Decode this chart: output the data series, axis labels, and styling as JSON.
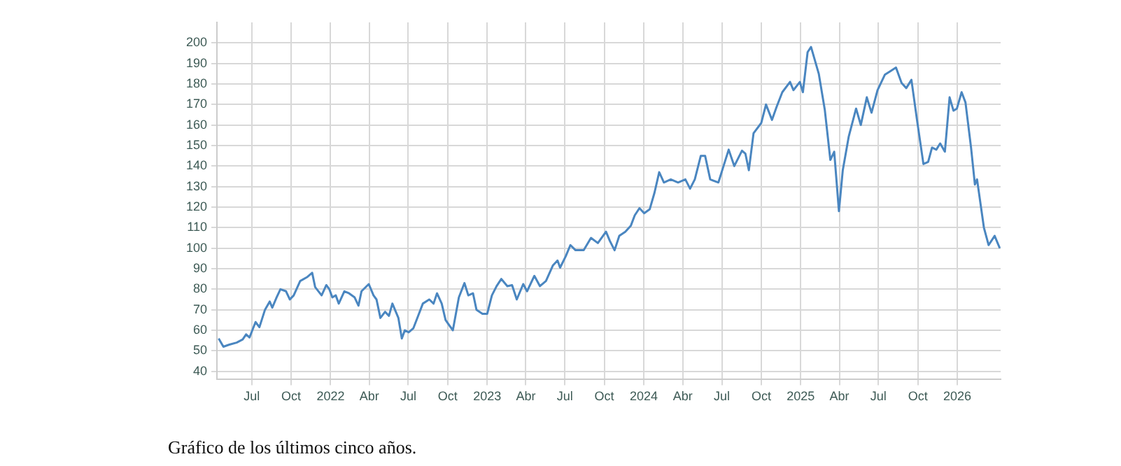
{
  "chart_data": {
    "type": "line",
    "annotations": [
      "Gráfico de los últimos cinco años."
    ],
    "x": [
      "2021-04-15",
      "2021-04-26",
      "2021-05-10",
      "2021-05-27",
      "2021-06-10",
      "2021-06-18",
      "2021-06-26",
      "2021-07-10",
      "2021-07-19",
      "2021-08-01",
      "2021-08-12",
      "2021-08-18",
      "2021-08-28",
      "2021-09-06",
      "2021-09-19",
      "2021-09-28",
      "2021-10-07",
      "2021-10-22",
      "2021-11-08",
      "2021-11-19",
      "2021-11-26",
      "2021-12-11",
      "2021-12-22",
      "2021-12-29",
      "2022-01-05",
      "2022-01-13",
      "2022-01-20",
      "2022-02-02",
      "2022-02-13",
      "2022-02-26",
      "2022-03-07",
      "2022-03-14",
      "2022-03-31",
      "2022-04-11",
      "2022-04-18",
      "2022-04-27",
      "2022-05-08",
      "2022-05-17",
      "2022-05-25",
      "2022-06-08",
      "2022-06-16",
      "2022-06-23",
      "2022-07-02",
      "2022-07-13",
      "2022-07-24",
      "2022-08-04",
      "2022-08-19",
      "2022-08-29",
      "2022-09-06",
      "2022-09-17",
      "2022-09-26",
      "2022-10-06",
      "2022-10-13",
      "2022-10-27",
      "2022-11-09",
      "2022-11-18",
      "2022-11-29",
      "2022-12-07",
      "2022-12-21",
      "2023-01-01",
      "2023-01-12",
      "2023-01-23",
      "2023-02-03",
      "2023-02-17",
      "2023-02-28",
      "2023-03-11",
      "2023-03-26",
      "2023-04-04",
      "2023-04-21",
      "2023-05-04",
      "2023-05-18",
      "2023-06-03",
      "2023-06-14",
      "2023-06-20",
      "2023-07-03",
      "2023-07-14",
      "2023-07-26",
      "2023-08-14",
      "2023-08-31",
      "2023-09-16",
      "2023-10-05",
      "2023-10-14",
      "2023-10-25",
      "2023-11-05",
      "2023-11-19",
      "2023-12-02",
      "2023-12-11",
      "2023-12-22",
      "2024-01-02",
      "2024-01-15",
      "2024-01-26",
      "2024-02-06",
      "2024-02-17",
      "2024-03-04",
      "2024-03-21",
      "2024-04-07",
      "2024-04-18",
      "2024-04-29",
      "2024-05-13",
      "2024-05-23",
      "2024-06-04",
      "2024-06-23",
      "2024-07-17",
      "2024-07-30",
      "2024-08-17",
      "2024-08-25",
      "2024-09-02",
      "2024-09-13",
      "2024-10-01",
      "2024-10-12",
      "2024-10-26",
      "2024-11-06",
      "2024-11-19",
      "2024-12-07",
      "2024-12-15",
      "2024-12-30",
      "2025-01-06",
      "2025-01-17",
      "2025-01-25",
      "2025-02-12",
      "2025-02-26",
      "2025-03-11",
      "2025-03-20",
      "2025-03-31",
      "2025-04-09",
      "2025-04-23",
      "2025-05-10",
      "2025-05-21",
      "2025-06-04",
      "2025-06-15",
      "2025-06-29",
      "2025-07-16",
      "2025-07-27",
      "2025-08-11",
      "2025-08-24",
      "2025-09-04",
      "2025-09-16",
      "2025-09-29",
      "2025-10-14",
      "2025-10-25",
      "2025-11-03",
      "2025-11-13",
      "2025-11-22",
      "2025-12-03",
      "2025-12-14",
      "2025-12-23",
      "2025-12-31",
      "2026-01-11",
      "2026-01-20",
      "2026-02-02",
      "2026-02-11",
      "2026-02-16",
      "2026-03-04",
      "2026-03-15",
      "2026-03-29",
      "2026-04-10"
    ],
    "series": [
      {
        "color": "#4a86c0",
        "values": [
          56,
          52,
          53,
          54,
          55.5,
          58,
          56.5,
          64,
          61.5,
          70,
          74,
          71,
          76,
          80,
          79,
          75,
          77,
          84,
          86,
          88,
          81,
          77,
          82,
          80,
          76,
          77,
          73,
          79,
          78,
          76,
          72,
          79,
          82.5,
          77,
          75,
          66,
          69,
          67,
          73,
          66,
          56,
          60,
          59,
          61,
          67,
          73,
          75,
          73,
          78,
          73,
          65,
          62,
          60,
          76,
          83,
          77,
          78,
          70,
          68,
          68,
          77,
          81.5,
          85,
          81.5,
          82,
          75,
          82.5,
          79,
          86.5,
          81.5,
          84,
          91.5,
          94,
          90.5,
          96,
          101.5,
          99,
          99,
          105,
          102.5,
          108,
          103.5,
          99,
          106,
          108,
          111,
          116,
          119.5,
          117,
          119,
          127,
          137,
          132,
          133.5,
          132,
          133.5,
          129,
          133.5,
          145,
          145,
          133.5,
          132,
          148,
          140,
          147.5,
          146,
          138,
          156,
          161,
          170,
          162.5,
          169,
          176,
          181,
          177,
          181,
          176,
          195.5,
          198,
          185,
          167.5,
          143,
          147,
          118,
          138,
          154.5,
          168,
          160,
          173.5,
          166,
          177,
          184.5,
          186,
          188,
          180.5,
          178,
          182,
          162.5,
          141,
          142,
          149,
          148,
          151,
          147,
          173.5,
          167,
          168,
          176,
          171,
          149,
          131,
          133.5,
          110,
          101.5,
          106,
          100
        ]
      }
    ],
    "xlim": [
      "2021-04-11",
      "2026-04-12"
    ],
    "xticks": [
      {
        "value": "2021-07-01",
        "label": "Jul"
      },
      {
        "value": "2021-10-01",
        "label": "Oct"
      },
      {
        "value": "2022-01-01",
        "label": "2022"
      },
      {
        "value": "2022-04-01",
        "label": "Abr"
      },
      {
        "value": "2022-07-01",
        "label": "Jul"
      },
      {
        "value": "2022-10-01",
        "label": "Oct"
      },
      {
        "value": "2023-01-01",
        "label": "2023"
      },
      {
        "value": "2023-04-01",
        "label": "Abr"
      },
      {
        "value": "2023-07-01",
        "label": "Jul"
      },
      {
        "value": "2023-10-01",
        "label": "Oct"
      },
      {
        "value": "2024-01-01",
        "label": "2024"
      },
      {
        "value": "2024-04-01",
        "label": "Abr"
      },
      {
        "value": "2024-07-01",
        "label": "Jul"
      },
      {
        "value": "2024-10-01",
        "label": "Oct"
      },
      {
        "value": "2025-01-01",
        "label": "2025"
      },
      {
        "value": "2025-04-01",
        "label": "Abr"
      },
      {
        "value": "2025-07-01",
        "label": "Jul"
      },
      {
        "value": "2025-10-01",
        "label": "Oct"
      },
      {
        "value": "2026-01-01",
        "label": "2026"
      }
    ],
    "ylim": [
      36,
      210
    ],
    "yticks": [
      40,
      50,
      60,
      70,
      80,
      90,
      100,
      110,
      120,
      130,
      140,
      150,
      160,
      170,
      180,
      190,
      200
    ],
    "grid": true,
    "marker": "none",
    "line_style": "solid",
    "legend": false
  }
}
